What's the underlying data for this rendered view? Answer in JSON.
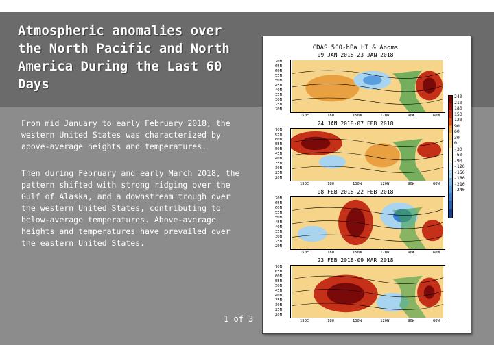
{
  "slide": {
    "title": "Atmospheric anomalies over the North Pacific and North America During the Last 60 Days",
    "paragraph1": "From mid January to early February 2018, the western United States was characterized by above-average heights and temperatures.",
    "paragraph2": "Then during February and early March 2018, the pattern shifted with strong ridging over the Gulf of Alaska, and a downstream trough over the western United States, contributing to below-average temperatures.  Above-average heights and temperatures have prevailed over the eastern United States.",
    "page_number": "1 of 3"
  },
  "figure": {
    "title_line1": "CDAS 500-hPa HT & Anoms",
    "panels": [
      {
        "label": "09 JAN 2018-23 JAN 2018"
      },
      {
        "label": "24 JAN 2018-07 FEB 2018"
      },
      {
        "label": "08 FEB 2018-22 FEB 2018"
      },
      {
        "label": "23 FEB 2018-09 MAR 2018"
      }
    ],
    "lat_labels": [
      "70N",
      "65N",
      "60N",
      "55N",
      "50N",
      "45N",
      "40N",
      "35N",
      "30N",
      "25N",
      "20N"
    ],
    "lon_labels": [
      "150E",
      "180",
      "150W",
      "120W",
      "90W",
      "60W"
    ],
    "colorbar_labels": [
      "240",
      "210",
      "180",
      "150",
      "120",
      "90",
      "60",
      "30",
      "0",
      "-30",
      "-60",
      "-90",
      "-120",
      "-150",
      "-180",
      "-210",
      "-240"
    ],
    "colors": {
      "warm_dark": "#7a0a0a",
      "warm": "#d4451a",
      "warm_light": "#f5c06a",
      "neutral": "#f4f0dc",
      "cool_light": "#a8d4f0",
      "cool": "#3a7fd0",
      "land_green": "#3f9e4a"
    }
  }
}
